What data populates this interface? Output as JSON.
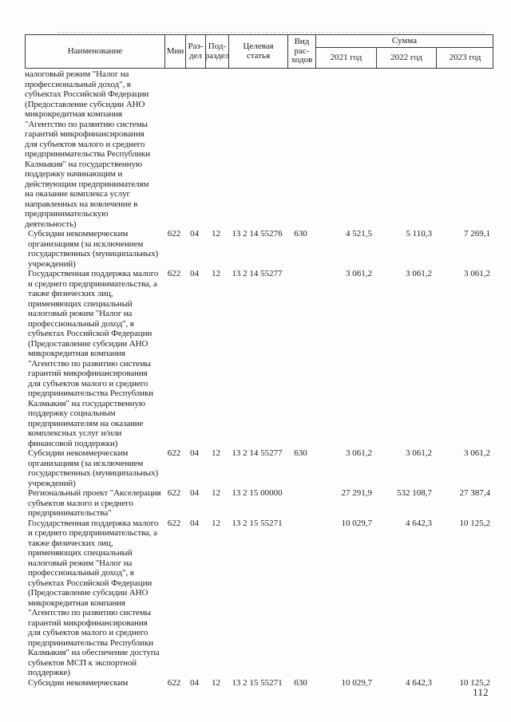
{
  "document": {
    "page_number": "112"
  },
  "table": {
    "header": {
      "name": "Наименование",
      "min": "Мин",
      "razdel": "Раз-\nдел",
      "podrazdel": "Под-\nраздел",
      "target_article": "Целевая\nстатья",
      "expense_type": "Вид\nрас-\nходов",
      "sum": "Сумма",
      "year1": "2021 год",
      "year2": "2022 год",
      "year3": "2023 год"
    },
    "rows": [
      {
        "name": "налоговый режим \"Налог на\nпрофессиональный доход\", в\nсубъектах Российской Федерации\n(Предоставление субсидии АНО\nмикрокредитная компания\n\"Агентство по развитию системы\nгарантий микрофинансирования\nдля субъектов малого и среднего\nпредпринимательства Республики\nКалмыкия\" на государственную\nподдержку начинающим и\nдействующим предпринимателям\nна оказание комплекса услуг\nнаправленных на вовлечение в\nпредпринимательскую\nдеятельность)",
        "min": "",
        "razdel": "",
        "podrazdel": "",
        "target_article": "",
        "expense_type": "",
        "y2021": "",
        "y2022": "",
        "y2023": ""
      },
      {
        "name": "Субсидии некоммерческим\nорганизациям (за исключением\nгосударственных (муниципальных)\nучреждений)",
        "min": "622",
        "razdel": "04",
        "podrazdel": "12",
        "target_article": "13 2 14 55276",
        "expense_type": "630",
        "y2021": "4 521,5",
        "y2022": "5 110,3",
        "y2023": "7 269,1"
      },
      {
        "name": "Государственная поддержка малого\nи среднего предпринимательства, а\nтакже физических лиц,\nприменяющих специальный\nналоговый режим \"Налог на\nпрофессиональный доход\", в\nсубъектах Российской Федерации\n(Предоставление субсидии АНО\nмикрокредитная компания\n\"Агентство по развитию системы\nгарантий микрофинансирования\nдля субъектов малого и среднего\nпредпринимательства Республики\nКалмыкия\" на государственную\nподдержку социальным\nпредпринимателям на оказание\nкомплексных услуг и/или\nфинансовой поддержки)",
        "min": "622",
        "razdel": "04",
        "podrazdel": "12",
        "target_article": "13 2 14 55277",
        "expense_type": "",
        "y2021": "3 061,2",
        "y2022": "3 061,2",
        "y2023": "3 061,2"
      },
      {
        "name": "Субсидии некоммерческим\nорганизациям (за исключением\nгосударственных (муниципальных)\nучреждений)",
        "min": "622",
        "razdel": "04",
        "podrazdel": "12",
        "target_article": "13 2 14 55277",
        "expense_type": "630",
        "y2021": "3 061,2",
        "y2022": "3 061,2",
        "y2023": "3 061,2"
      },
      {
        "name": "Региональный проект \"Акселерация\nсубъектов малого и среднего\nпредпринимательства\"",
        "min": "622",
        "razdel": "04",
        "podrazdel": "12",
        "target_article": "13 2 15 00000",
        "expense_type": "",
        "y2021": "27 291,9",
        "y2022": "532 108,7",
        "y2023": "27 387,4"
      },
      {
        "name": "Государственная поддержка малого\nи среднего предпринимательства, а\nтакже физических лиц,\nприменяющих специальный\nналоговый режим \"Налог на\nпрофессиональный доход\", в\nсубъектах Российской Федерации\n(Предоставление субсидии АНО\nмикрокредитная компания\n\"Агентство по развитию системы\nгарантий микрофинансирования\nдля субъектов малого и среднего\nпредпринимательства Республики\nКалмыкия\" на обеспечение доступа\nсубъектов МСП к экспортной\nподдержке)",
        "min": "622",
        "razdel": "04",
        "podrazdel": "12",
        "target_article": "13 2 15 55271",
        "expense_type": "",
        "y2021": "10 029,7",
        "y2022": "4 642,3",
        "y2023": "10 125,2"
      },
      {
        "name": "Субсидии некоммерческим",
        "min": "622",
        "razdel": "04",
        "podrazdel": "12",
        "target_article": "13 2 15 55271",
        "expense_type": "630",
        "y2021": "10 029,7",
        "y2022": "4 642,3",
        "y2023": "10 125,2"
      }
    ]
  }
}
